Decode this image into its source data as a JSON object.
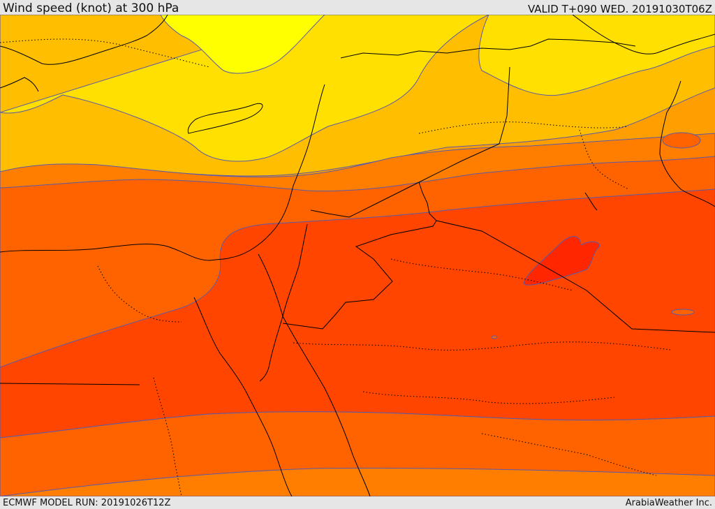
{
  "header": {
    "title": "Wind speed (knot) at 300 hPa",
    "valid": "VALID T+090 WED. 20191030T06Z"
  },
  "footer": {
    "model_run": "ECMWF MODEL RUN: 20191026T12Z",
    "credit": "ArabiaWeather Inc."
  },
  "colors": {
    "band_1": "#ffff00",
    "band_2": "#ffe000",
    "band_3": "#ffbf00",
    "band_4": "#ff9e00",
    "band_5": "#ff7e00",
    "band_6": "#ff6300",
    "band_7": "#ff4500",
    "band_8": "#ff2600",
    "contour": "#5a5aa8",
    "border": "#000000"
  }
}
